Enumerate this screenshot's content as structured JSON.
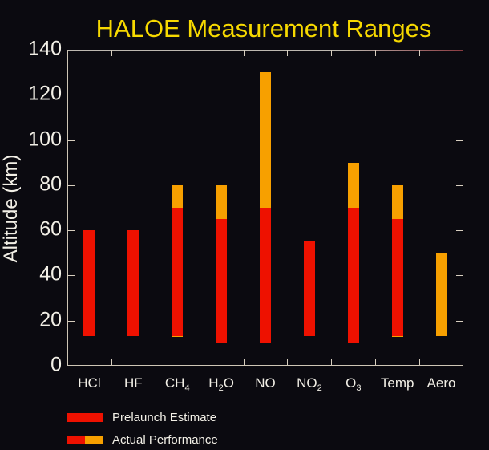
{
  "chart_data": {
    "type": "bar",
    "title": "HALOE Measurement Ranges",
    "xlabel": "",
    "ylabel": "Altitude (km)",
    "ylim": [
      0,
      140
    ],
    "yticks": [
      0,
      20,
      40,
      60,
      80,
      100,
      120,
      140
    ],
    "grid": false,
    "legend_position": "bottom-left",
    "categories": [
      "HCl",
      "HF",
      "CH4",
      "H2O",
      "NO",
      "NO2",
      "O3",
      "Temp",
      "Aero"
    ],
    "category_labels": [
      {
        "base": "HCl",
        "sub": ""
      },
      {
        "base": "HF",
        "sub": ""
      },
      {
        "base": "CH",
        "sub": "4"
      },
      {
        "base": "H",
        "sub": "2",
        "tail": "O"
      },
      {
        "base": "NO",
        "sub": ""
      },
      {
        "base": "NO",
        "sub": "2"
      },
      {
        "base": "O",
        "sub": "3"
      },
      {
        "base": "Temp",
        "sub": ""
      },
      {
        "base": "Aero",
        "sub": ""
      }
    ],
    "series": [
      {
        "name": "Prelaunch Estimate",
        "color": "#ee1100",
        "ranges": [
          [
            13,
            60
          ],
          [
            13,
            60
          ],
          [
            13,
            70
          ],
          [
            10,
            65
          ],
          [
            10,
            70
          ],
          [
            13,
            55
          ],
          [
            10,
            70
          ],
          [
            13,
            65
          ],
          null
        ]
      },
      {
        "name": "Actual Performance",
        "color": "#f7a000",
        "ranges": [
          [
            13,
            60
          ],
          [
            13,
            60
          ],
          [
            13,
            80
          ],
          [
            10,
            80
          ],
          [
            10,
            130
          ],
          [
            13,
            55
          ],
          [
            10,
            90
          ],
          [
            13,
            80
          ],
          [
            13,
            50
          ]
        ]
      }
    ],
    "legend": [
      {
        "label": "Prelaunch Estimate",
        "swatch": [
          "#ee1100"
        ]
      },
      {
        "label": "Actual Performance",
        "swatch": [
          "#ee1100",
          "#f7a000"
        ]
      }
    ]
  },
  "colors": {
    "background": "#0b0a10",
    "title": "#f7d900",
    "prelaunch": "#ee1100",
    "actual_extension": "#f7a000",
    "axis": "#cfc6b6",
    "text": "#f2efe6"
  }
}
